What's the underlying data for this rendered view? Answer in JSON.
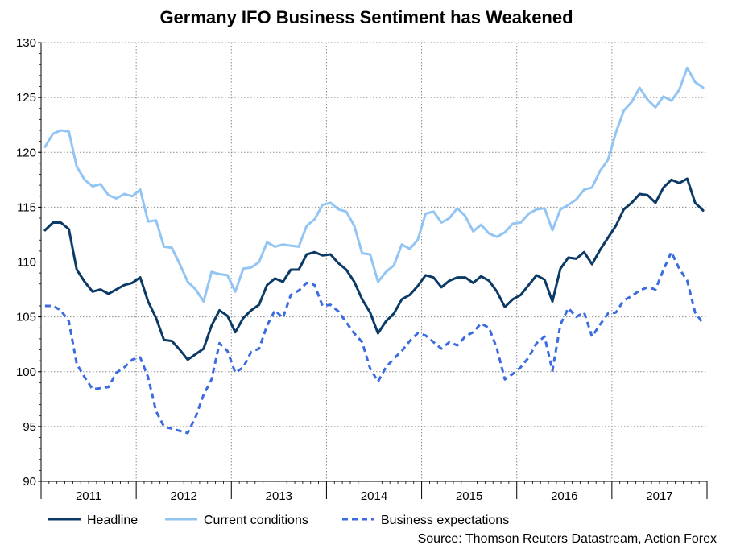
{
  "chart_data": {
    "type": "line",
    "title": "Germany IFO Business Sentiment has Weakened",
    "source": "Source: Thomson Reuters Datastream, Action Forex",
    "ylim": [
      90,
      130
    ],
    "yticks": [
      90,
      95,
      100,
      105,
      110,
      115,
      120,
      125,
      130
    ],
    "x_start": "2011-01",
    "year_labels": [
      "2011",
      "2012",
      "2013",
      "2014",
      "2015",
      "2016",
      "2017"
    ],
    "grid": true,
    "legend_position": "bottom",
    "series": [
      {
        "name": "Headline",
        "color": "#0b3a66",
        "style": "solid",
        "values": [
          112.9,
          113.6,
          113.6,
          113.0,
          109.3,
          108.2,
          107.3,
          107.5,
          107.1,
          107.5,
          107.9,
          108.1,
          108.6,
          106.4,
          104.9,
          102.9,
          102.8,
          102.0,
          101.1,
          101.6,
          102.1,
          104.2,
          105.6,
          105.1,
          103.6,
          104.9,
          105.6,
          106.1,
          107.9,
          108.5,
          108.2,
          109.3,
          109.3,
          110.7,
          110.9,
          110.6,
          110.7,
          109.9,
          109.3,
          108.2,
          106.6,
          105.4,
          103.5,
          104.6,
          105.3,
          106.6,
          107.0,
          107.8,
          108.8,
          108.6,
          107.7,
          108.3,
          108.6,
          108.6,
          108.1,
          108.7,
          108.3,
          107.3,
          105.9,
          106.6,
          107.0,
          107.9,
          108.8,
          108.4,
          106.4,
          109.4,
          110.4,
          110.3,
          110.9,
          109.8,
          111.1,
          112.2,
          113.3,
          114.8,
          115.4,
          116.2,
          116.1,
          115.4,
          116.8,
          117.5,
          117.2,
          117.6,
          115.4,
          114.7
        ]
      },
      {
        "name": "Current conditions",
        "color": "#93c5f4",
        "style": "solid",
        "values": [
          120.5,
          121.7,
          122.0,
          121.9,
          118.7,
          117.5,
          116.9,
          117.1,
          116.1,
          115.8,
          116.2,
          116.0,
          116.6,
          113.7,
          113.8,
          111.4,
          111.3,
          109.8,
          108.2,
          107.5,
          106.4,
          109.1,
          108.9,
          108.8,
          107.3,
          109.4,
          109.5,
          110.0,
          111.8,
          111.4,
          111.6,
          111.5,
          111.4,
          113.3,
          113.9,
          115.2,
          115.4,
          114.8,
          114.6,
          113.3,
          110.8,
          110.7,
          108.2,
          109.1,
          109.7,
          111.6,
          111.2,
          112.0,
          114.4,
          114.6,
          113.6,
          114.0,
          114.9,
          114.2,
          112.8,
          113.4,
          112.6,
          112.3,
          112.7,
          113.5,
          113.6,
          114.4,
          114.8,
          114.9,
          112.9,
          114.8,
          115.2,
          115.7,
          116.6,
          116.8,
          118.3,
          119.3,
          121.8,
          123.8,
          124.6,
          125.9,
          124.8,
          124.1,
          125.1,
          124.7,
          125.7,
          127.7,
          126.4,
          125.9
        ]
      },
      {
        "name": "Business expectations",
        "color": "#3b6be0",
        "style": "dashed",
        "values": [
          106.0,
          106.0,
          105.6,
          104.6,
          100.7,
          99.5,
          98.4,
          98.5,
          98.6,
          99.9,
          100.4,
          101.1,
          101.3,
          99.5,
          96.4,
          95.0,
          94.8,
          94.6,
          94.4,
          95.9,
          97.9,
          99.3,
          102.6,
          101.9,
          99.9,
          100.4,
          101.8,
          102.1,
          104.2,
          105.6,
          104.9,
          107.0,
          107.4,
          108.1,
          107.9,
          106.0,
          106.1,
          105.5,
          104.5,
          103.5,
          102.7,
          100.3,
          99.1,
          100.4,
          101.2,
          101.9,
          102.8,
          103.5,
          103.3,
          102.7,
          102.1,
          102.7,
          102.4,
          103.2,
          103.6,
          104.4,
          104.0,
          102.1,
          99.3,
          99.8,
          100.4,
          101.3,
          102.6,
          103.2,
          100.1,
          104.3,
          105.8,
          105.0,
          105.4,
          103.2,
          104.3,
          105.3,
          105.4,
          106.5,
          106.9,
          107.4,
          107.7,
          107.5,
          109.3,
          110.9,
          109.4,
          108.3,
          105.4,
          104.4
        ]
      }
    ]
  }
}
